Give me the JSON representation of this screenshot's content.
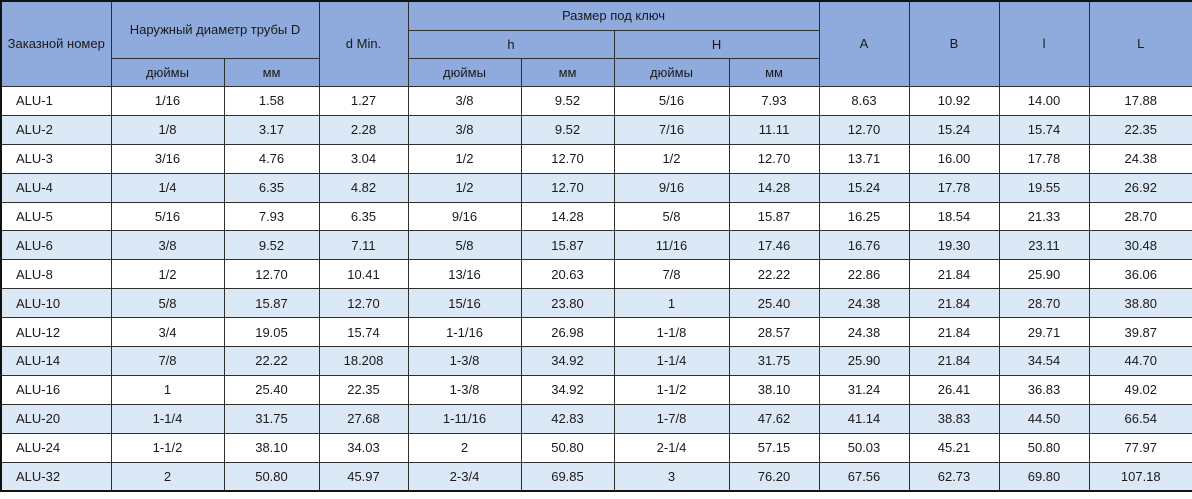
{
  "table": {
    "header": {
      "order_number": "Заказной номер",
      "outer_diameter": "Наружный диаметр трубы D",
      "d_min": "d Min.",
      "wrench_size": "Размер под ключ",
      "h_label": "h",
      "H_label": "H",
      "inches": "дюймы",
      "mm": "мм",
      "A_label": "A",
      "B_label": "B",
      "l_label": "l",
      "L_label": "L"
    },
    "columns": [
      "Заказной номер",
      "D дюймы",
      "D мм",
      "d Min.",
      "h дюймы",
      "h мм",
      "H дюймы",
      "H мм",
      "A",
      "B",
      "l",
      "L"
    ],
    "rows": [
      [
        "ALU-1",
        "1/16",
        "1.58",
        "1.27",
        "3/8",
        "9.52",
        "5/16",
        "7.93",
        "8.63",
        "10.92",
        "14.00",
        "17.88"
      ],
      [
        "ALU-2",
        "1/8",
        "3.17",
        "2.28",
        "3/8",
        "9.52",
        "7/16",
        "11.11",
        "12.70",
        "15.24",
        "15.74",
        "22.35"
      ],
      [
        "ALU-3",
        "3/16",
        "4.76",
        "3.04",
        "1/2",
        "12.70",
        "1/2",
        "12.70",
        "13.71",
        "16.00",
        "17.78",
        "24.38"
      ],
      [
        "ALU-4",
        "1/4",
        "6.35",
        "4.82",
        "1/2",
        "12.70",
        "9/16",
        "14.28",
        "15.24",
        "17.78",
        "19.55",
        "26.92"
      ],
      [
        "ALU-5",
        "5/16",
        "7.93",
        "6.35",
        "9/16",
        "14.28",
        "5/8",
        "15.87",
        "16.25",
        "18.54",
        "21.33",
        "28.70"
      ],
      [
        "ALU-6",
        "3/8",
        "9.52",
        "7.11",
        "5/8",
        "15.87",
        "11/16",
        "17.46",
        "16.76",
        "19.30",
        "23.11",
        "30.48"
      ],
      [
        "ALU-8",
        "1/2",
        "12.70",
        "10.41",
        "13/16",
        "20.63",
        "7/8",
        "22.22",
        "22.86",
        "21.84",
        "25.90",
        "36.06"
      ],
      [
        "ALU-10",
        "5/8",
        "15.87",
        "12.70",
        "15/16",
        "23.80",
        "1",
        "25.40",
        "24.38",
        "21.84",
        "28.70",
        "38.80"
      ],
      [
        "ALU-12",
        "3/4",
        "19.05",
        "15.74",
        "1-1/16",
        "26.98",
        "1-1/8",
        "28.57",
        "24.38",
        "21.84",
        "29.71",
        "39.87"
      ],
      [
        "ALU-14",
        "7/8",
        "22.22",
        "18.208",
        "1-3/8",
        "34.92",
        "1-1/4",
        "31.75",
        "25.90",
        "21.84",
        "34.54",
        "44.70"
      ],
      [
        "ALU-16",
        "1",
        "25.40",
        "22.35",
        "1-3/8",
        "34.92",
        "1-1/2",
        "38.10",
        "31.24",
        "26.41",
        "36.83",
        "49.02"
      ],
      [
        "ALU-20",
        "1-1/4",
        "31.75",
        "27.68",
        "1-11/16",
        "42.83",
        "1-7/8",
        "47.62",
        "41.14",
        "38.83",
        "44.50",
        "66.54"
      ],
      [
        "ALU-24",
        "1-1/2",
        "38.10",
        "34.03",
        "2",
        "50.80",
        "2-1/4",
        "57.15",
        "50.03",
        "45.21",
        "50.80",
        "77.97"
      ],
      [
        "ALU-32",
        "2",
        "50.80",
        "45.97",
        "2-3/4",
        "69.85",
        "3",
        "76.20",
        "67.56",
        "62.73",
        "69.80",
        "107.18"
      ]
    ],
    "colors": {
      "header_bg": "#8FAADC",
      "stripe_bg": "#DBE8F6",
      "row_bg": "#FFFFFF",
      "border": "#2E2E2E",
      "text": "#1A1A1A"
    }
  }
}
